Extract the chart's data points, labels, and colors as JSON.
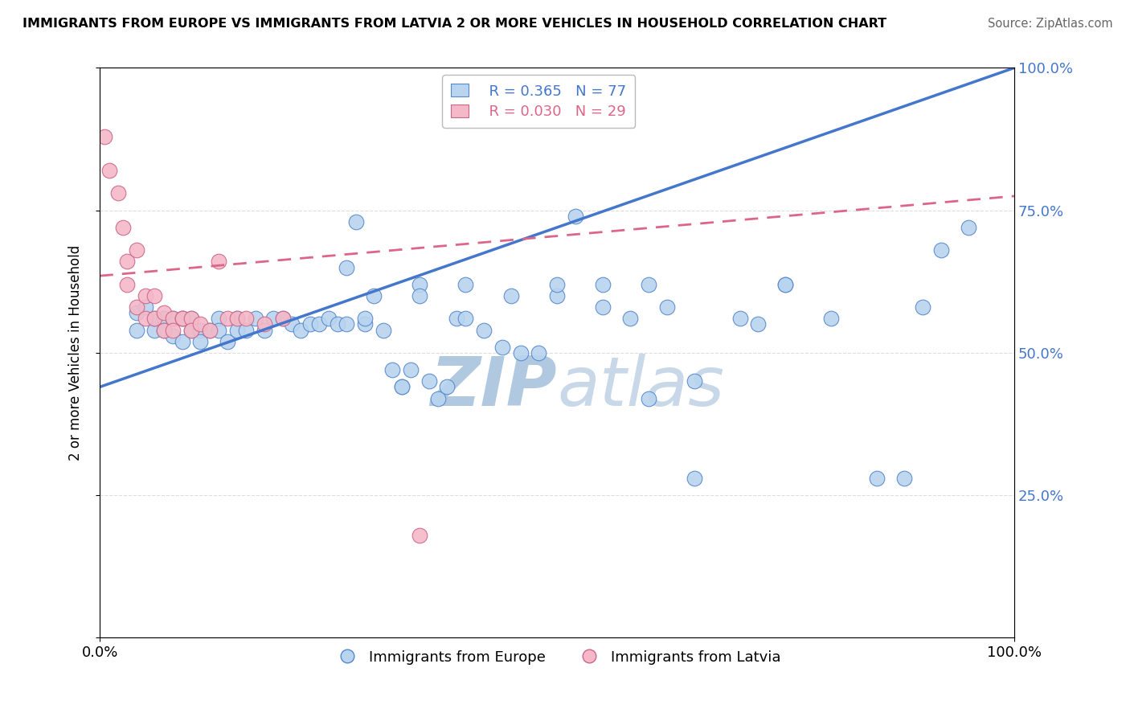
{
  "title": "IMMIGRANTS FROM EUROPE VS IMMIGRANTS FROM LATVIA 2 OR MORE VEHICLES IN HOUSEHOLD CORRELATION CHART",
  "source": "Source: ZipAtlas.com",
  "ylabel": "2 or more Vehicles in Household",
  "ytick_values": [
    0.0,
    0.25,
    0.5,
    0.75,
    1.0
  ],
  "ytick_labels_right": [
    "",
    "25.0%",
    "50.0%",
    "75.0%",
    "100.0%"
  ],
  "xtick_values": [
    0.0,
    1.0
  ],
  "xtick_labels": [
    "0.0%",
    "100.0%"
  ],
  "xlim": [
    0.0,
    1.0
  ],
  "ylim": [
    0.0,
    1.0
  ],
  "R_blue": 0.365,
  "N_blue": 77,
  "R_pink": 0.03,
  "N_pink": 29,
  "color_blue_fill": "#b8d4ee",
  "color_blue_edge": "#5588cc",
  "color_pink_fill": "#f4b8c8",
  "color_pink_edge": "#cc6688",
  "color_blue_line": "#4477cc",
  "color_pink_line": "#dd6688",
  "legend_blue": "Immigrants from Europe",
  "legend_pink": "Immigrants from Latvia",
  "watermark_zip": "ZIP",
  "watermark_atlas": "atlas",
  "watermark_color": "#c8d8e8",
  "grid_color": "#dddddd",
  "blue_line_start_y": 0.44,
  "blue_line_end_y": 1.0,
  "pink_line_start_y": 0.635,
  "pink_line_end_y": 0.775,
  "blue_x": [
    0.04,
    0.04,
    0.05,
    0.06,
    0.06,
    0.07,
    0.07,
    0.08,
    0.08,
    0.09,
    0.09,
    0.1,
    0.1,
    0.11,
    0.11,
    0.12,
    0.13,
    0.13,
    0.14,
    0.15,
    0.15,
    0.16,
    0.17,
    0.18,
    0.19,
    0.2,
    0.21,
    0.22,
    0.23,
    0.24,
    0.25,
    0.26,
    0.27,
    0.28,
    0.29,
    0.3,
    0.31,
    0.32,
    0.33,
    0.34,
    0.35,
    0.36,
    0.37,
    0.38,
    0.39,
    0.4,
    0.42,
    0.44,
    0.46,
    0.48,
    0.5,
    0.52,
    0.55,
    0.58,
    0.6,
    0.62,
    0.65,
    0.7,
    0.72,
    0.75,
    0.8,
    0.85,
    0.9,
    0.27,
    0.29,
    0.33,
    0.35,
    0.4,
    0.45,
    0.5,
    0.55,
    0.6,
    0.65,
    0.75,
    0.88,
    0.92,
    0.95
  ],
  "blue_y": [
    0.57,
    0.54,
    0.58,
    0.54,
    0.56,
    0.56,
    0.54,
    0.56,
    0.53,
    0.56,
    0.52,
    0.56,
    0.54,
    0.54,
    0.52,
    0.54,
    0.56,
    0.54,
    0.52,
    0.56,
    0.54,
    0.54,
    0.56,
    0.54,
    0.56,
    0.56,
    0.55,
    0.54,
    0.55,
    0.55,
    0.56,
    0.55,
    0.55,
    0.73,
    0.55,
    0.6,
    0.54,
    0.47,
    0.44,
    0.47,
    0.62,
    0.45,
    0.42,
    0.44,
    0.56,
    0.56,
    0.54,
    0.51,
    0.5,
    0.5,
    0.6,
    0.74,
    0.62,
    0.56,
    0.62,
    0.58,
    0.45,
    0.56,
    0.55,
    0.62,
    0.56,
    0.28,
    0.58,
    0.65,
    0.56,
    0.44,
    0.6,
    0.62,
    0.6,
    0.62,
    0.58,
    0.42,
    0.28,
    0.62,
    0.28,
    0.68,
    0.72
  ],
  "pink_x": [
    0.005,
    0.01,
    0.02,
    0.025,
    0.03,
    0.03,
    0.04,
    0.04,
    0.05,
    0.05,
    0.06,
    0.06,
    0.07,
    0.07,
    0.08,
    0.08,
    0.09,
    0.09,
    0.1,
    0.1,
    0.11,
    0.12,
    0.13,
    0.14,
    0.15,
    0.16,
    0.18,
    0.2,
    0.35
  ],
  "pink_y": [
    0.88,
    0.82,
    0.78,
    0.72,
    0.66,
    0.62,
    0.58,
    0.68,
    0.56,
    0.6,
    0.6,
    0.56,
    0.57,
    0.54,
    0.56,
    0.54,
    0.56,
    0.56,
    0.56,
    0.54,
    0.55,
    0.54,
    0.66,
    0.56,
    0.56,
    0.56,
    0.55,
    0.56,
    0.18
  ]
}
